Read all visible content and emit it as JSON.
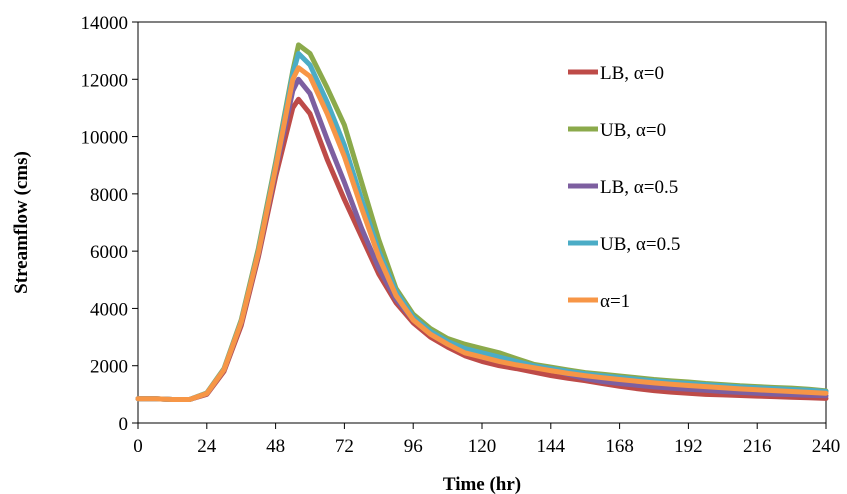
{
  "chart_data": {
    "type": "line",
    "title": "",
    "xlabel": "Time (hr)",
    "ylabel": "Streamflow (cms)",
    "xlim": [
      0,
      240
    ],
    "ylim": [
      0,
      14000
    ],
    "xticks": [
      0,
      24,
      48,
      72,
      96,
      120,
      144,
      168,
      192,
      216,
      240
    ],
    "yticks": [
      0,
      2000,
      4000,
      6000,
      8000,
      10000,
      12000,
      14000
    ],
    "grid": false,
    "legend_position": "right",
    "x": [
      0,
      6,
      12,
      18,
      24,
      30,
      36,
      42,
      48,
      54,
      56,
      60,
      66,
      72,
      78,
      84,
      90,
      96,
      102,
      108,
      114,
      120,
      126,
      132,
      138,
      144,
      150,
      156,
      162,
      168,
      174,
      180,
      186,
      192,
      198,
      204,
      210,
      216,
      222,
      228,
      234,
      240
    ],
    "series": [
      {
        "name": "LB, α=0",
        "color": "#BE4B48",
        "values": [
          850,
          850,
          820,
          820,
          1000,
          1800,
          3400,
          5800,
          8600,
          11000,
          11300,
          10800,
          9200,
          7800,
          6500,
          5200,
          4200,
          3500,
          3000,
          2650,
          2350,
          2150,
          2000,
          1900,
          1780,
          1660,
          1560,
          1480,
          1380,
          1280,
          1200,
          1130,
          1080,
          1040,
          1000,
          980,
          960,
          940,
          920,
          900,
          880,
          860
        ]
      },
      {
        "name": "UB, α=0",
        "color": "#8BAA4B",
        "values": [
          850,
          850,
          820,
          820,
          1050,
          1900,
          3600,
          6100,
          9100,
          12300,
          13200,
          12900,
          11700,
          10400,
          8400,
          6400,
          4700,
          3800,
          3300,
          2950,
          2750,
          2600,
          2450,
          2250,
          2050,
          1950,
          1850,
          1760,
          1700,
          1640,
          1580,
          1520,
          1470,
          1430,
          1380,
          1340,
          1300,
          1270,
          1240,
          1220,
          1180,
          1120
        ]
      },
      {
        "name": "LB, α=0.5",
        "color": "#7D5FA0",
        "values": [
          850,
          850,
          820,
          820,
          1020,
          1850,
          3500,
          5900,
          8800,
          11600,
          12000,
          11500,
          9900,
          8400,
          6800,
          5400,
          4300,
          3600,
          3100,
          2750,
          2500,
          2300,
          2150,
          2050,
          1950,
          1850,
          1700,
          1550,
          1450,
          1380,
          1320,
          1260,
          1220,
          1180,
          1140,
          1100,
          1070,
          1040,
          1010,
          990,
          970,
          950
        ]
      },
      {
        "name": "UB, α=0.5",
        "color": "#4BACC6",
        "values": [
          850,
          850,
          820,
          820,
          1040,
          1880,
          3550,
          6000,
          9000,
          12200,
          12900,
          12500,
          11200,
          9700,
          7800,
          6000,
          4600,
          3700,
          3200,
          2850,
          2600,
          2450,
          2300,
          2150,
          2000,
          1900,
          1800,
          1720,
          1650,
          1590,
          1530,
          1470,
          1420,
          1380,
          1340,
          1300,
          1260,
          1230,
          1200,
          1170,
          1140,
          1100
        ]
      },
      {
        "name": "α=1",
        "color": "#F79646",
        "values": [
          850,
          850,
          820,
          820,
          1030,
          1860,
          3520,
          5950,
          8900,
          12000,
          12400,
          12100,
          10800,
          9300,
          7500,
          5800,
          4450,
          3600,
          3100,
          2750,
          2450,
          2300,
          2150,
          2030,
          1930,
          1830,
          1730,
          1650,
          1580,
          1520,
          1460,
          1400,
          1350,
          1310,
          1270,
          1230,
          1190,
          1160,
          1130,
          1100,
          1070,
          1040
        ]
      }
    ]
  }
}
